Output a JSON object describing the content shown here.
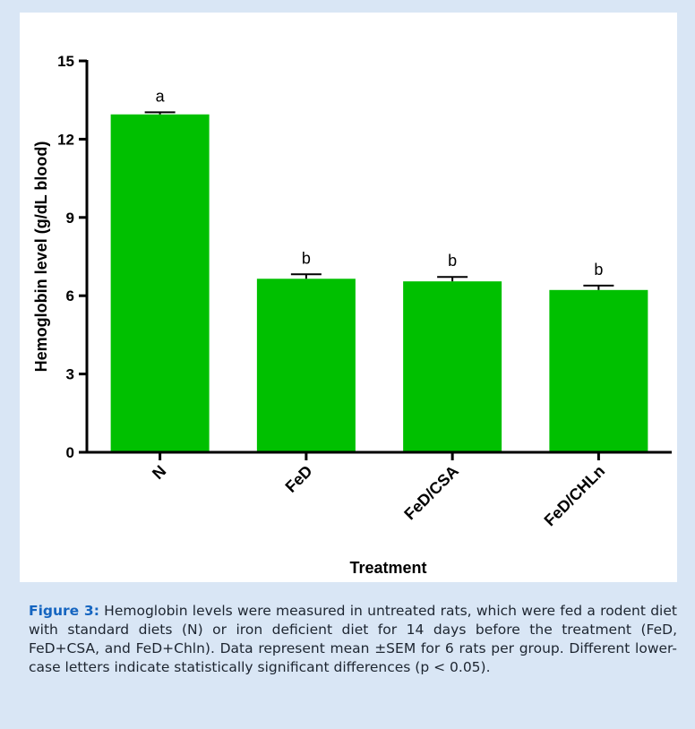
{
  "chart_data": {
    "type": "bar",
    "categories": [
      "N",
      "FeD",
      "FeD/CSA",
      "FeD/CHLn"
    ],
    "values": [
      12.95,
      6.65,
      6.55,
      6.22
    ],
    "errors": [
      0.08,
      0.17,
      0.17,
      0.17
    ],
    "significance_letters": [
      "a",
      "b",
      "b",
      "b"
    ],
    "xlabel": "Treatment",
    "ylabel": "Hemoglobin level (g/dL blood)",
    "ylim": [
      0,
      15
    ],
    "yticks": [
      0,
      3,
      6,
      9,
      12,
      15
    ],
    "grid": false,
    "bar_color": "#00c000"
  },
  "caption": {
    "label": "Figure 3:",
    "text": "Hemoglobin levels were measured in untreated rats, which were fed a rodent diet with standard diets (N) or iron deficient diet for 14 days before the treatment (FeD, FeD+CSA, and FeD+Chln). Data represent mean ±SEM for 6 rats per group. Different lower-case letters indicate statistically significant differences (p < 0.05)."
  }
}
